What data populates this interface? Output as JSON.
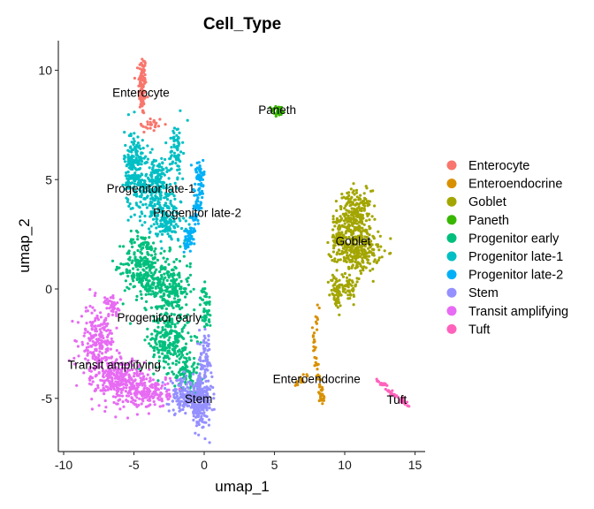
{
  "chart_data": {
    "type": "scatter",
    "title": "Cell_Type",
    "xlabel": "umap_1",
    "ylabel": "umap_2",
    "xlim": [
      -10.3,
      15.7
    ],
    "ylim": [
      -7.4,
      11.3
    ],
    "xticks": [
      -10,
      -5,
      0,
      5,
      10,
      15
    ],
    "yticks": [
      -5,
      0,
      5,
      10
    ],
    "xtick_labels": [
      "-10",
      "-5",
      "0",
      "5",
      "10",
      "15"
    ],
    "ytick_labels": [
      "-5",
      "0",
      "5",
      "10"
    ],
    "grid": false,
    "legend_position": "right",
    "series": [
      {
        "name": "Enterocyte",
        "color": "#F8766D",
        "label_pos": [
          -4.5,
          9.0
        ],
        "regions": [
          {
            "cx": -4.4,
            "cy": 9.3,
            "sx": 0.18,
            "sy": 0.95,
            "n": 110
          },
          {
            "cx": -3.8,
            "cy": 7.5,
            "sx": 0.6,
            "sy": 0.25,
            "n": 25
          }
        ]
      },
      {
        "name": "Enteroendocrine",
        "color": "#D89000",
        "label_pos": [
          8.0,
          -4.1
        ],
        "regions": [
          {
            "line": [
              [
                8.1,
                -0.5
              ],
              [
                7.8,
                -2.6
              ],
              [
                8.3,
                -4.7
              ],
              [
                8.4,
                -5.1
              ]
            ],
            "spread": 0.1,
            "n": 60
          },
          {
            "line": [
              [
                6.5,
                -4.4
              ],
              [
                7.6,
                -3.7
              ]
            ],
            "spread": 0.08,
            "n": 14
          }
        ]
      },
      {
        "name": "Goblet",
        "color": "#A3A500",
        "label_pos": [
          10.6,
          2.2
        ],
        "regions": [
          {
            "cx": 10.7,
            "cy": 3.3,
            "sx": 0.8,
            "sy": 0.8,
            "n": 260
          },
          {
            "cx": 11.0,
            "cy": 1.7,
            "sx": 1.0,
            "sy": 0.6,
            "n": 230
          },
          {
            "cx": 9.5,
            "cy": 2.3,
            "sx": 0.4,
            "sy": 0.5,
            "n": 60
          },
          {
            "cx": 9.4,
            "cy": -0.1,
            "sx": 0.3,
            "sy": 0.55,
            "n": 60
          },
          {
            "cx": 10.3,
            "cy": 0.2,
            "sx": 0.35,
            "sy": 0.6,
            "n": 50
          }
        ]
      },
      {
        "name": "Paneth",
        "color": "#39B600",
        "label_pos": [
          5.2,
          8.2
        ],
        "regions": [
          {
            "cx": 5.3,
            "cy": 8.15,
            "sx": 0.35,
            "sy": 0.15,
            "n": 40
          }
        ]
      },
      {
        "name": "Progenitor early",
        "color": "#00BF7D",
        "label_pos": [
          -3.2,
          -1.3
        ],
        "regions": [
          {
            "cx": -4.4,
            "cy": 1.1,
            "sx": 0.9,
            "sy": 1.0,
            "n": 230
          },
          {
            "cx": -2.6,
            "cy": 0.0,
            "sx": 1.1,
            "sy": 1.0,
            "n": 250
          },
          {
            "cx": -2.4,
            "cy": -2.4,
            "sx": 1.0,
            "sy": 0.9,
            "n": 230
          },
          {
            "cx": -1.3,
            "cy": -3.8,
            "sx": 0.6,
            "sy": 0.5,
            "n": 80
          },
          {
            "cx": 0.1,
            "cy": -0.9,
            "sx": 0.25,
            "sy": 0.7,
            "n": 50
          }
        ]
      },
      {
        "name": "Progenitor late-1",
        "color": "#00BFC4",
        "label_pos": [
          -3.8,
          4.6
        ],
        "regions": [
          {
            "cx": -5.0,
            "cy": 5.5,
            "sx": 0.45,
            "sy": 1.2,
            "n": 200
          },
          {
            "cx": -3.4,
            "cy": 4.6,
            "sx": 0.9,
            "sy": 1.0,
            "n": 260
          },
          {
            "cx": -2.0,
            "cy": 6.4,
            "sx": 0.3,
            "sy": 0.8,
            "n": 70
          },
          {
            "cx": -2.6,
            "cy": 3.0,
            "sx": 0.9,
            "sy": 0.6,
            "n": 120
          }
        ]
      },
      {
        "name": "Progenitor late-2",
        "color": "#00B0F6",
        "label_pos": [
          -0.5,
          3.5
        ],
        "regions": [
          {
            "line": [
              [
                -0.4,
                5.7
              ],
              [
                -0.3,
                4.5
              ],
              [
                -0.8,
                2.8
              ],
              [
                -1.3,
                1.9
              ]
            ],
            "spread": 0.17,
            "n": 150
          }
        ]
      },
      {
        "name": "Stem",
        "color": "#9590FF",
        "label_pos": [
          -0.4,
          -5.0
        ],
        "regions": [
          {
            "cx": -0.3,
            "cy": -5.1,
            "sx": 0.55,
            "sy": 0.75,
            "n": 260
          },
          {
            "cx": -1.6,
            "cy": -4.9,
            "sx": 0.6,
            "sy": 0.5,
            "n": 120
          },
          {
            "cx": 0.1,
            "cy": -3.1,
            "sx": 0.3,
            "sy": 0.7,
            "n": 60
          }
        ]
      },
      {
        "name": "Transit amplifying",
        "color": "#E76BF3",
        "label_pos": [
          -6.4,
          -3.45
        ],
        "regions": [
          {
            "cx": -7.6,
            "cy": -2.5,
            "sx": 0.8,
            "sy": 1.1,
            "n": 230
          },
          {
            "cx": -6.0,
            "cy": -4.2,
            "sx": 1.1,
            "sy": 0.7,
            "n": 260
          },
          {
            "cx": -3.8,
            "cy": -4.7,
            "sx": 0.9,
            "sy": 0.5,
            "n": 160
          },
          {
            "cx": -6.5,
            "cy": -0.8,
            "sx": 0.4,
            "sy": 0.3,
            "n": 40
          }
        ]
      },
      {
        "name": "Tuft",
        "color": "#FF62BC",
        "label_pos": [
          13.7,
          -5.05
        ],
        "regions": [
          {
            "line": [
              [
                12.3,
                -4.2
              ],
              [
                14.6,
                -5.35
              ]
            ],
            "spread": 0.07,
            "n": 45
          }
        ]
      }
    ]
  }
}
